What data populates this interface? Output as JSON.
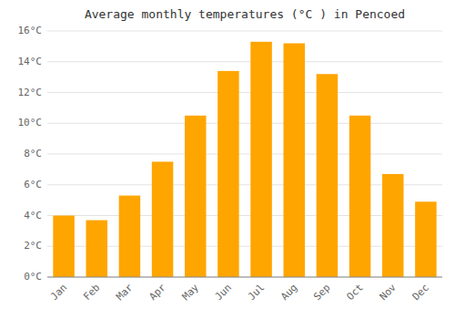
{
  "chart_data": {
    "type": "bar",
    "title": "Average monthly temperatures (°C ) in Pencoed",
    "categories": [
      "Jan",
      "Feb",
      "Mar",
      "Apr",
      "May",
      "Jun",
      "Jul",
      "Aug",
      "Sep",
      "Oct",
      "Nov",
      "Dec"
    ],
    "values": [
      4.0,
      3.7,
      5.3,
      7.5,
      10.5,
      13.4,
      15.3,
      15.2,
      13.2,
      10.5,
      6.7,
      4.9
    ],
    "color": "#FFA500",
    "ylim": [
      0,
      16
    ],
    "yticks": [
      {
        "value": 0,
        "label": "0°C"
      },
      {
        "value": 2,
        "label": "2°C"
      },
      {
        "value": 4,
        "label": "4°C"
      },
      {
        "value": 6,
        "label": "6°C"
      },
      {
        "value": 8,
        "label": "8°C"
      },
      {
        "value": 10,
        "label": "10°C"
      },
      {
        "value": 12,
        "label": "12°C"
      },
      {
        "value": 14,
        "label": "14°C"
      },
      {
        "value": 16,
        "label": "16°C"
      }
    ],
    "grid": true
  }
}
